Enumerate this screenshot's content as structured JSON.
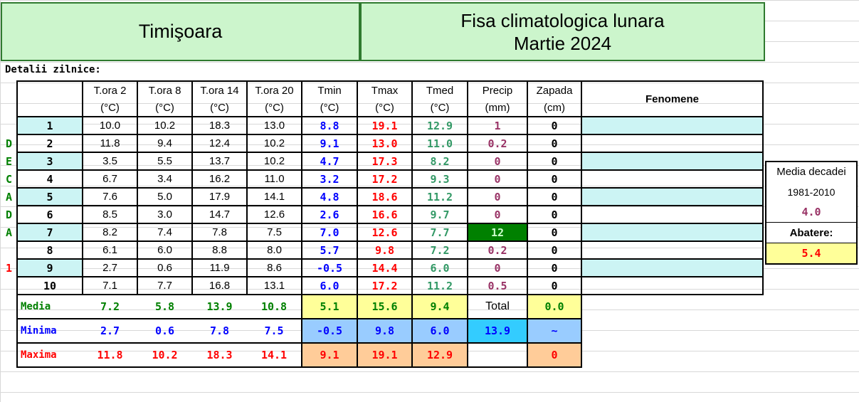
{
  "header": {
    "city": "Timişoara",
    "title_line1": "Fisa climatologica lunara",
    "title_line2": "Martie 2024"
  },
  "section_label": "Detalii zilnice:",
  "columns": [
    {
      "name": "T.ora 2",
      "unit": "(°C)"
    },
    {
      "name": "T.ora 8",
      "unit": "(°C)"
    },
    {
      "name": "T.ora 14",
      "unit": "(°C)"
    },
    {
      "name": "T.ora 20",
      "unit": "(°C)"
    },
    {
      "name": "Tmin",
      "unit": "(°C)"
    },
    {
      "name": "Tmax",
      "unit": "(°C)"
    },
    {
      "name": "Tmed",
      "unit": "(°C)"
    },
    {
      "name": "Precip",
      "unit": "(mm)"
    },
    {
      "name": "Zapada",
      "unit": "(cm)"
    }
  ],
  "fenomene_label": "Fenomene",
  "decada_letters": [
    "D",
    "E",
    "C",
    "A",
    "D",
    "A"
  ],
  "decada_number": "1",
  "rows": [
    {
      "day": "1",
      "t2": "10.0",
      "t8": "10.2",
      "t14": "18.3",
      "t20": "13.0",
      "tmin": "8.8",
      "tmax": "19.1",
      "tmed": "12.9",
      "precip": "1",
      "zapada": "0"
    },
    {
      "day": "2",
      "t2": "11.8",
      "t8": "9.4",
      "t14": "12.4",
      "t20": "10.2",
      "tmin": "9.1",
      "tmax": "13.0",
      "tmed": "11.0",
      "precip": "0.2",
      "zapada": "0"
    },
    {
      "day": "3",
      "t2": "3.5",
      "t8": "5.5",
      "t14": "13.7",
      "t20": "10.2",
      "tmin": "4.7",
      "tmax": "17.3",
      "tmed": "8.2",
      "precip": "0",
      "zapada": "0"
    },
    {
      "day": "4",
      "t2": "6.7",
      "t8": "3.4",
      "t14": "16.2",
      "t20": "11.0",
      "tmin": "3.2",
      "tmax": "17.2",
      "tmed": "9.3",
      "precip": "0",
      "zapada": "0"
    },
    {
      "day": "5",
      "t2": "7.6",
      "t8": "5.0",
      "t14": "17.9",
      "t20": "14.1",
      "tmin": "4.8",
      "tmax": "18.6",
      "tmed": "11.2",
      "precip": "0",
      "zapada": "0"
    },
    {
      "day": "6",
      "t2": "8.5",
      "t8": "3.0",
      "t14": "14.7",
      "t20": "12.6",
      "tmin": "2.6",
      "tmax": "16.6",
      "tmed": "9.7",
      "precip": "0",
      "zapada": "0"
    },
    {
      "day": "7",
      "t2": "8.2",
      "t8": "7.4",
      "t14": "7.8",
      "t20": "7.5",
      "tmin": "7.0",
      "tmax": "12.6",
      "tmed": "7.7",
      "precip": "12",
      "zapada": "0"
    },
    {
      "day": "8",
      "t2": "6.1",
      "t8": "6.0",
      "t14": "8.8",
      "t20": "8.0",
      "tmin": "5.7",
      "tmax": "9.8",
      "tmed": "7.2",
      "precip": "0.2",
      "zapada": "0"
    },
    {
      "day": "9",
      "t2": "2.7",
      "t8": "0.6",
      "t14": "11.9",
      "t20": "8.6",
      "tmin": "-0.5",
      "tmax": "14.4",
      "tmed": "6.0",
      "precip": "0",
      "zapada": "0"
    },
    {
      "day": "10",
      "t2": "7.1",
      "t8": "7.7",
      "t14": "16.8",
      "t20": "13.1",
      "tmin": "6.0",
      "tmax": "17.2",
      "tmed": "11.2",
      "precip": "0.5",
      "zapada": "0"
    }
  ],
  "summary": {
    "media": {
      "label": "Media",
      "t2": "7.2",
      "t8": "5.8",
      "t14": "13.9",
      "t20": "10.8",
      "tmin": "5.1",
      "tmax": "15.6",
      "tmed": "9.4",
      "precip_label": "Total",
      "zapada": "0.0"
    },
    "minima": {
      "label": "Minima",
      "t2": "2.7",
      "t8": "0.6",
      "t14": "7.8",
      "t20": "7.5",
      "tmin": "-0.5",
      "tmax": "9.8",
      "tmed": "6.0",
      "precip": "13.9",
      "zapada": "~"
    },
    "maxima": {
      "label": "Maxima",
      "t2": "11.8",
      "t8": "10.2",
      "t14": "18.3",
      "t20": "14.1",
      "tmin": "9.1",
      "tmax": "19.1",
      "tmed": "12.9",
      "precip": "",
      "zapada": "0"
    }
  },
  "side_panel": {
    "media_label": "Media decadei",
    "period": "1981-2010",
    "media_value": "4.0",
    "abatere_label": "Abatere:",
    "abatere_value": "5.4"
  },
  "colors": {
    "header_fill": "#ccf5cc",
    "row_highlight": "#ccf4f4",
    "precip_highlight": "#008000",
    "total_yellow": "#ffff99"
  }
}
